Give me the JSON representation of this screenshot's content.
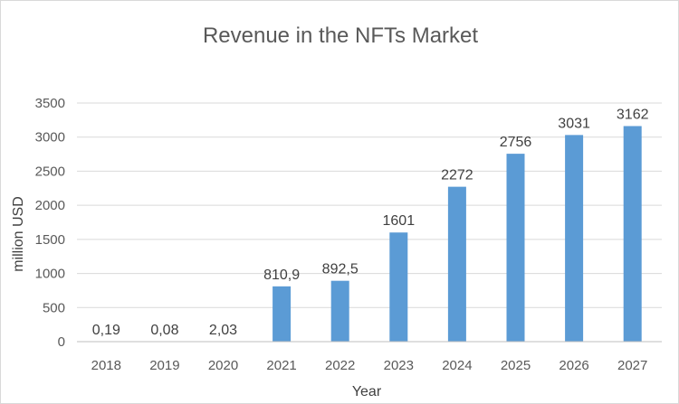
{
  "chart_data": {
    "type": "bar",
    "title": "Revenue in the NFTs Market",
    "xlabel": "Year",
    "ylabel": "million USD",
    "ylim": [
      0,
      3500
    ],
    "yticks": [
      0,
      500,
      1000,
      1500,
      2000,
      2500,
      3000,
      3500
    ],
    "grid": true,
    "bar_color": "#5b9bd5",
    "categories": [
      "2018",
      "2019",
      "2020",
      "2021",
      "2022",
      "2023",
      "2024",
      "2025",
      "2026",
      "2027"
    ],
    "values": [
      0.19,
      0.08,
      2.03,
      810.9,
      892.5,
      1601,
      2272,
      2756,
      3031,
      3162
    ],
    "data_labels": [
      "0,19",
      "0,08",
      "2,03",
      "810,9",
      "892,5",
      "1601",
      "2272",
      "2756",
      "3031",
      "3162"
    ]
  }
}
